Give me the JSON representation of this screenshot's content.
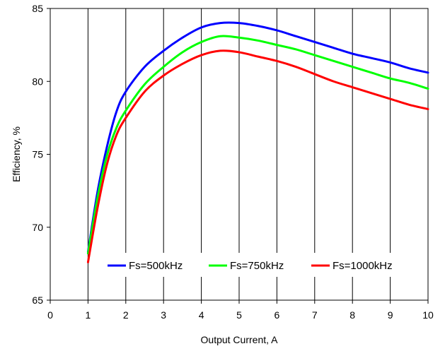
{
  "chart_data": {
    "type": "line",
    "xlabel": "Output Current, A",
    "ylabel": "Efficiency, %",
    "xlim": [
      0,
      10
    ],
    "ylim": [
      65,
      85
    ],
    "xticks": [
      "0",
      "1",
      "2",
      "3",
      "4",
      "5",
      "6",
      "7",
      "8",
      "9",
      "10"
    ],
    "yticks": [
      "65",
      "70",
      "75",
      "80",
      "85"
    ],
    "grid": "vertical",
    "legend_position": "inside-bottom",
    "series": [
      {
        "name": "Fs=500kHz",
        "color": "#0000ff",
        "x": [
          1,
          1.25,
          1.5,
          1.75,
          2,
          2.5,
          3,
          3.5,
          4,
          4.5,
          5,
          5.5,
          6,
          6.5,
          7,
          7.5,
          8,
          8.5,
          9,
          9.5,
          10
        ],
        "y": [
          68.3,
          72.4,
          75.5,
          77.9,
          79.3,
          81.0,
          82.1,
          83.0,
          83.7,
          84.0,
          84.0,
          83.8,
          83.5,
          83.1,
          82.7,
          82.3,
          81.9,
          81.6,
          81.3,
          80.9,
          80.6
        ]
      },
      {
        "name": "Fs=750kHz",
        "color": "#00ff00",
        "x": [
          1,
          1.25,
          1.5,
          1.75,
          2,
          2.5,
          3,
          3.5,
          4,
          4.5,
          5,
          5.5,
          6,
          6.5,
          7,
          7.5,
          8,
          8.5,
          9,
          9.5,
          10
        ],
        "y": [
          68.2,
          72.0,
          74.9,
          76.8,
          78.0,
          79.8,
          81.0,
          82.0,
          82.7,
          83.1,
          83.0,
          82.8,
          82.5,
          82.2,
          81.8,
          81.4,
          81.0,
          80.6,
          80.2,
          79.9,
          79.5
        ]
      },
      {
        "name": "Fs=1000kHz",
        "color": "#ff0000",
        "x": [
          1,
          1.25,
          1.5,
          1.75,
          2,
          2.5,
          3,
          3.5,
          4,
          4.5,
          5,
          5.5,
          6,
          6.5,
          7,
          7.5,
          8,
          8.5,
          9,
          9.5,
          10
        ],
        "y": [
          67.6,
          71.3,
          74.3,
          76.3,
          77.5,
          79.3,
          80.4,
          81.2,
          81.8,
          82.1,
          82.0,
          81.7,
          81.4,
          81.0,
          80.5,
          80.0,
          79.6,
          79.2,
          78.8,
          78.4,
          78.1
        ]
      }
    ]
  }
}
